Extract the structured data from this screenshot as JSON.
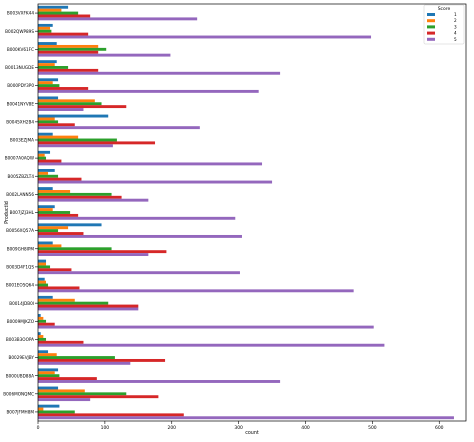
{
  "chart_data": {
    "type": "bar",
    "orientation": "horizontal",
    "xlabel": "count",
    "ylabel": "ProductId",
    "xlim": [
      0,
      640
    ],
    "xticks": [
      "0",
      "100",
      "200",
      "300",
      "400",
      "500",
      "600"
    ],
    "grid": false,
    "legend": {
      "title": "Score",
      "placement": "top-right"
    },
    "categories": [
      "B003VXFK44",
      "B002QWP89S",
      "B000KV61FC",
      "B0013NUGDE",
      "B000PDY3P0",
      "B0041NYV8E",
      "B0045XH2B4",
      "B003EZJMA",
      "B0007A0AQW",
      "B005ZBZLT4",
      "B002LANN56",
      "B007JZJ3HL",
      "B0056XQ57A",
      "B009GH8IPM",
      "B003D4F1QS",
      "B001EO5Q64",
      "B0014JDB0I",
      "B0009MJKZO",
      "B003B3OOPA",
      "B0029EVJBY",
      "B000UBD88A",
      "B006MONQMC",
      "B007JFMH8M"
    ],
    "series": [
      {
        "name": "1",
        "color": "#1f77b4",
        "values": [
          45,
          22,
          28,
          28,
          30,
          30,
          105,
          22,
          18,
          25,
          22,
          25,
          95,
          22,
          12,
          10,
          22,
          4,
          4,
          15,
          30,
          30,
          32
        ]
      },
      {
        "name": "2",
        "color": "#ff7f0e",
        "values": [
          35,
          18,
          90,
          25,
          22,
          85,
          25,
          60,
          10,
          15,
          48,
          22,
          45,
          35,
          12,
          12,
          55,
          8,
          8,
          28,
          25,
          70,
          8
        ]
      },
      {
        "name": "3",
        "color": "#2ca02c",
        "values": [
          60,
          20,
          102,
          45,
          32,
          95,
          30,
          118,
          12,
          30,
          110,
          48,
          30,
          110,
          18,
          15,
          105,
          12,
          12,
          115,
          32,
          132,
          55
        ]
      },
      {
        "name": "4",
        "color": "#d62728",
        "values": [
          78,
          75,
          90,
          90,
          75,
          132,
          55,
          175,
          35,
          65,
          125,
          60,
          68,
          192,
          50,
          62,
          150,
          25,
          68,
          190,
          88,
          180,
          218
        ]
      },
      {
        "name": "5",
        "color": "#9467bd",
        "values": [
          238,
          498,
          198,
          362,
          330,
          68,
          242,
          112,
          335,
          350,
          165,
          295,
          305,
          165,
          302,
          472,
          150,
          502,
          518,
          138,
          362,
          78,
          622
        ]
      }
    ]
  }
}
